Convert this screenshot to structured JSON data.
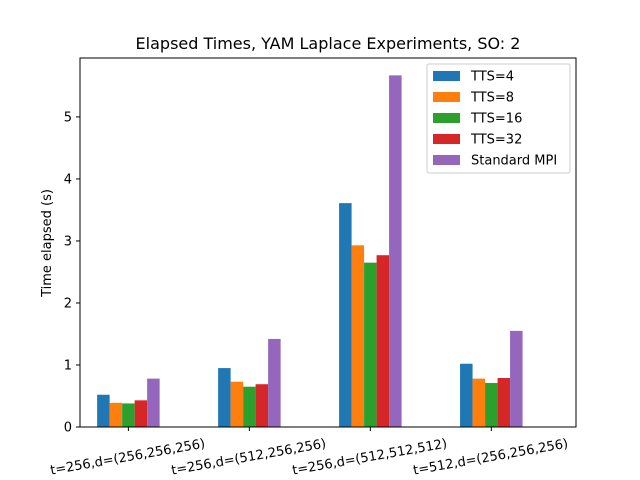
{
  "chart_data": {
    "type": "bar",
    "title": "Elapsed Times, YAM Laplace Experiments, SO: 2",
    "xlabel": "",
    "ylabel": "Time elapsed (s)",
    "ylim": [
      0,
      5.95
    ],
    "yticks": [
      0,
      1,
      2,
      3,
      4,
      5
    ],
    "categories": [
      "t=256,d=(256,256,256)",
      "t=256,d=(512,256,256)",
      "t=256,d=(512,512,512)",
      "t=512,d=(256,256,256)"
    ],
    "series": [
      {
        "name": "TTS=4",
        "color": "#1f77b4",
        "values": [
          0.52,
          0.95,
          3.61,
          1.02
        ]
      },
      {
        "name": "TTS=8",
        "color": "#ff7f0e",
        "values": [
          0.39,
          0.73,
          2.93,
          0.78
        ]
      },
      {
        "name": "TTS=16",
        "color": "#2ca02c",
        "values": [
          0.38,
          0.65,
          2.65,
          0.71
        ]
      },
      {
        "name": "TTS=32",
        "color": "#d62728",
        "values": [
          0.43,
          0.69,
          2.77,
          0.79
        ]
      },
      {
        "name": "Standard MPI",
        "color": "#9467bd",
        "values": [
          0.78,
          1.42,
          5.67,
          1.55
        ]
      }
    ],
    "grid": false,
    "legend_position": "top-right"
  }
}
